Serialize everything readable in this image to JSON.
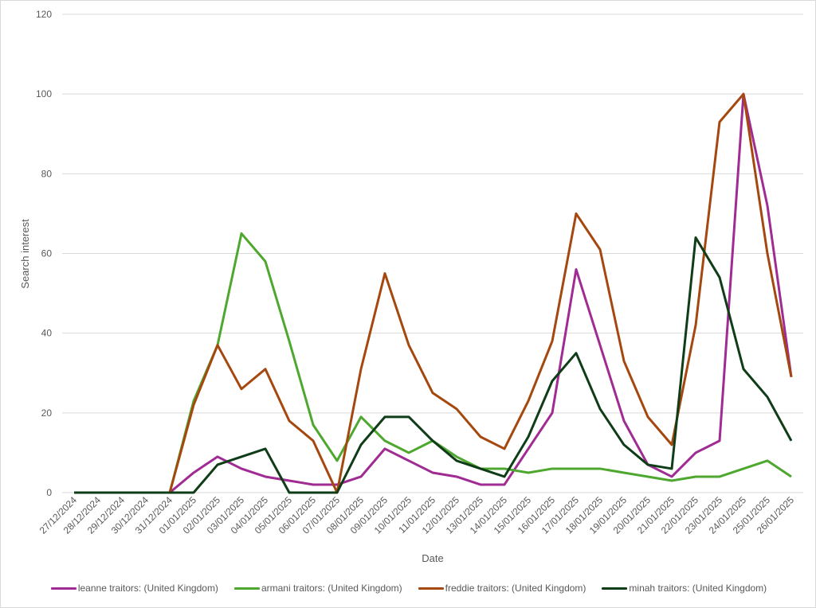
{
  "chart_data": {
    "type": "line",
    "title": "",
    "xlabel": "Date",
    "ylabel": "Search interest",
    "ylim": [
      0,
      120
    ],
    "yticks": [
      0,
      20,
      40,
      60,
      80,
      100,
      120
    ],
    "grid": true,
    "legend_position": "bottom",
    "categories": [
      "27/12/2024",
      "28/12/2024",
      "29/12/2024",
      "30/12/2024",
      "31/12/2024",
      "01/01/2025",
      "02/01/2025",
      "03/01/2025",
      "04/01/2025",
      "05/01/2025",
      "06/01/2025",
      "07/01/2025",
      "08/01/2025",
      "09/01/2025",
      "10/01/2025",
      "11/01/2025",
      "12/01/2025",
      "13/01/2025",
      "14/01/2025",
      "15/01/2025",
      "16/01/2025",
      "17/01/2025",
      "18/01/2025",
      "19/01/2025",
      "20/01/2025",
      "21/01/2025",
      "22/01/2025",
      "23/01/2025",
      "24/01/2025",
      "25/01/2025",
      "26/01/2025"
    ],
    "series": [
      {
        "name": "leanne traitors: (United Kingdom)",
        "color": "#a02b93",
        "values": [
          null,
          null,
          null,
          null,
          0,
          5,
          9,
          6,
          4,
          3,
          2,
          2,
          4,
          11,
          8,
          5,
          4,
          2,
          2,
          11,
          20,
          56,
          37,
          18,
          7,
          4,
          10,
          13,
          100,
          72,
          29
        ]
      },
      {
        "name": "armani traitors: (United Kingdom)",
        "color": "#4ea72e",
        "values": [
          null,
          null,
          null,
          null,
          0,
          23,
          37,
          65,
          58,
          38,
          17,
          8,
          19,
          13,
          10,
          13,
          9,
          6,
          6,
          5,
          6,
          6,
          6,
          5,
          4,
          3,
          4,
          4,
          6,
          8,
          4
        ]
      },
      {
        "name": "freddie traitors: (United Kingdom)",
        "color": "#a5480f",
        "values": [
          null,
          null,
          null,
          null,
          0,
          22,
          37,
          26,
          31,
          18,
          13,
          0,
          31,
          55,
          37,
          25,
          21,
          14,
          11,
          23,
          38,
          70,
          61,
          33,
          19,
          12,
          42,
          93,
          100,
          60,
          29
        ]
      },
      {
        "name": "minah traitors: (United Kingdom)",
        "color": "#0f3d17",
        "values": [
          0,
          0,
          0,
          0,
          0,
          0,
          7,
          9,
          11,
          0,
          0,
          0,
          12,
          19,
          19,
          13,
          8,
          6,
          4,
          14,
          28,
          35,
          21,
          12,
          7,
          6,
          64,
          54,
          31,
          24,
          13
        ]
      }
    ]
  }
}
